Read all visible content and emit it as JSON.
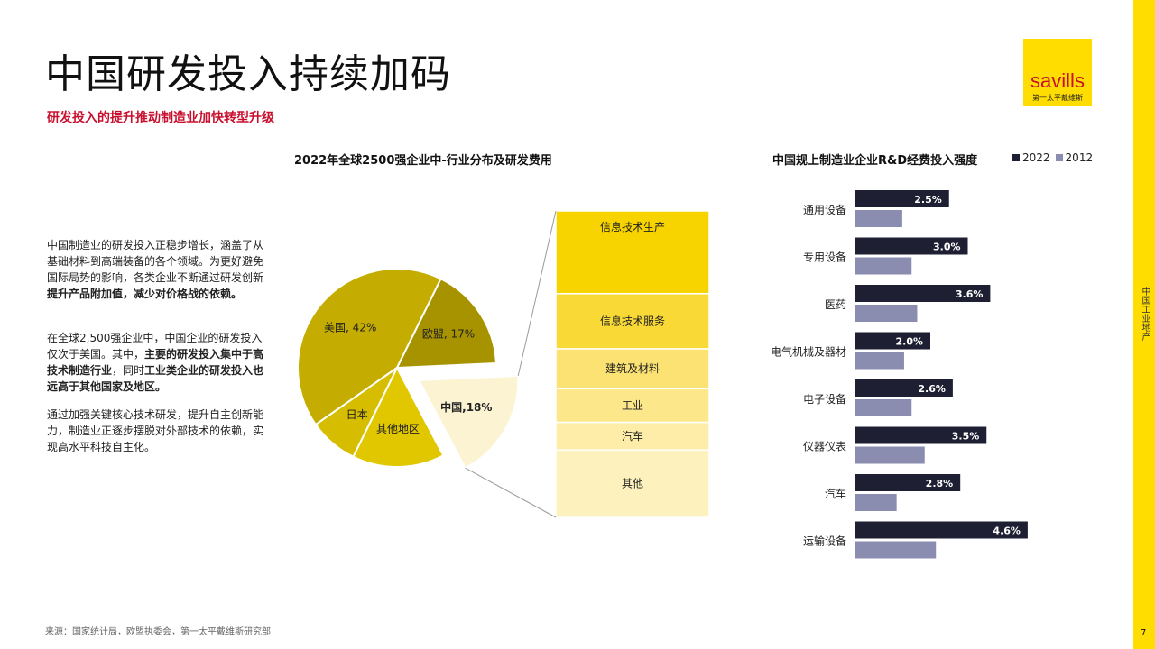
{
  "header": {
    "title": "中国研发投入持续加码",
    "subtitle": "研发投入的提升推动制造业加快转型升级"
  },
  "logo": {
    "word": "savills",
    "cn": "第一太平戴维斯"
  },
  "sidebar": {
    "section_label": "中国工业地产",
    "page_number": "7"
  },
  "left_text": {
    "p1": [
      {
        "t": "中国制造业的研发投入正稳步增长，涵盖了从基础材料到高端装备的各个领域。为更好避免国际局势的影响，各类企业不断通过研发创新",
        "b": false
      },
      {
        "t": "提升产品附加值，减少对价格战的依赖。",
        "b": true
      }
    ],
    "p2": [
      {
        "t": "在全球2,500强企业中，中国企业的研发投入仅次于美国。其中，",
        "b": false
      },
      {
        "t": "主要的研发投入集中于高技术制造行业",
        "b": true
      },
      {
        "t": "，同时",
        "b": false
      },
      {
        "t": "工业类企业的研发投入也远高于其他国家及地区。",
        "b": true
      }
    ],
    "p3": [
      {
        "t": "通过加强关键核心技术研发，提升自主创新能力，制造业正逐步摆脱对外部技术的依赖，实现高水平科技自主化。",
        "b": false
      }
    ]
  },
  "source_note": "来源：国家统计局，欧盟执委会，第一太平戴维斯研究部",
  "colors": {
    "accent_red": "#c8102e",
    "brand_yellow": "#ffdd00",
    "bar_2022": "#1f1f33",
    "bar_2012": "#8a8db0"
  },
  "chart_data": [
    {
      "type": "pie",
      "title": "2022年全球2500强企业中-行业分布及研发费用",
      "slices": [
        {
          "label": "美国, 42%",
          "value": 42,
          "color": "#c4ad00"
        },
        {
          "label": "欧盟, 17%",
          "value": 17,
          "color": "#a79300"
        },
        {
          "label": "中国,18%",
          "value": 18,
          "color": "#fbf3d2",
          "exploded": true
        },
        {
          "label": "其他地区",
          "value": 15,
          "color": "#e0c700"
        },
        {
          "label": "日本",
          "value": 8,
          "color": "#d6bd00"
        }
      ],
      "breakdown_of": "中国,18%",
      "breakdown": [
        {
          "label": "信息技术生产",
          "value": 27,
          "color": "#f7d400"
        },
        {
          "label": "信息技术服务",
          "value": 18,
          "color": "#f8d936"
        },
        {
          "label": "建筑及材料",
          "value": 13,
          "color": "#fbe273"
        },
        {
          "label": "工业",
          "value": 11,
          "color": "#fce78b"
        },
        {
          "label": "汽车",
          "value": 9,
          "color": "#fdeda8"
        },
        {
          "label": "其他",
          "value": 22,
          "color": "#fdf1bd"
        }
      ]
    },
    {
      "type": "bar",
      "orientation": "horizontal",
      "title": "中国规上制造业企业R&D经费投入强度",
      "legend_position": "top-right",
      "categories": [
        "通用设备",
        "专用设备",
        "医药",
        "电气机械及器材",
        "电子设备",
        "仪器仪表",
        "汽车",
        "运输设备"
      ],
      "series": [
        {
          "name": "2022",
          "values": [
            2.5,
            3.0,
            3.6,
            2.0,
            2.6,
            3.5,
            2.8,
            4.6
          ],
          "labels": [
            "2.5%",
            "3.0%",
            "3.6%",
            "2.0%",
            "2.6%",
            "3.5%",
            "2.8%",
            "4.6%"
          ]
        },
        {
          "name": "2012",
          "values": [
            1.25,
            1.5,
            1.65,
            1.3,
            1.5,
            1.85,
            1.1,
            2.15
          ]
        }
      ],
      "xlim": [
        0,
        5
      ]
    }
  ]
}
